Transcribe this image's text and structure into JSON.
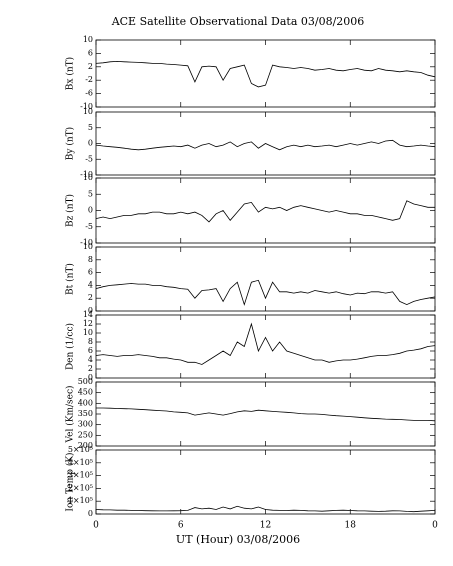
{
  "title": "ACE Satellite Observational Data   03/08/2006",
  "xlabel": "UT (Hour)  03/08/2006",
  "chart_data": [
    {
      "type": "line",
      "ylabel": "Bx (nT)",
      "color": "#000000",
      "xlim": [
        0,
        24
      ],
      "ylim": [
        -10,
        10
      ],
      "yticks": [
        -10,
        -6,
        -2,
        2,
        6,
        10
      ],
      "x": [
        0,
        0.5,
        1,
        1.5,
        2,
        2.5,
        3,
        3.5,
        4,
        4.5,
        5,
        5.5,
        6,
        6.5,
        7,
        7.5,
        8,
        8.5,
        9,
        9.5,
        10,
        10.5,
        11,
        11.5,
        12,
        12.5,
        13,
        13.5,
        14,
        14.5,
        15,
        15.5,
        16,
        16.5,
        17,
        17.5,
        18,
        18.5,
        19,
        19.5,
        20,
        20.5,
        21,
        21.5,
        22,
        22.5,
        23,
        23.5,
        24
      ],
      "values": [
        3,
        3.2,
        3.5,
        3.6,
        3.5,
        3.4,
        3.3,
        3.2,
        3,
        3,
        2.8,
        2.7,
        2.5,
        2.3,
        -2.5,
        2,
        2.2,
        2,
        -2,
        1.5,
        2,
        2.5,
        -3,
        -4,
        -3.5,
        2.5,
        2,
        1.8,
        1.5,
        1.8,
        1.5,
        1,
        1.2,
        1.5,
        1,
        0.8,
        1.2,
        1.5,
        1,
        0.8,
        1.5,
        1,
        0.8,
        0.5,
        0.8,
        0.5,
        0.3,
        -0.5,
        -1
      ]
    },
    {
      "type": "line",
      "ylabel": "By (nT)",
      "color": "#000000",
      "xlim": [
        0,
        24
      ],
      "ylim": [
        -10,
        10
      ],
      "yticks": [
        -10,
        -5,
        0,
        5,
        10
      ],
      "x": [
        0,
        0.5,
        1,
        1.5,
        2,
        2.5,
        3,
        3.5,
        4,
        4.5,
        5,
        5.5,
        6,
        6.5,
        7,
        7.5,
        8,
        8.5,
        9,
        9.5,
        10,
        10.5,
        11,
        11.5,
        12,
        12.5,
        13,
        13.5,
        14,
        14.5,
        15,
        15.5,
        16,
        16.5,
        17,
        17.5,
        18,
        18.5,
        19,
        19.5,
        20,
        20.5,
        21,
        21.5,
        22,
        22.5,
        23,
        23.5,
        24
      ],
      "values": [
        -0.5,
        -0.8,
        -1,
        -1.2,
        -1.5,
        -1.8,
        -2,
        -1.8,
        -1.5,
        -1.2,
        -1,
        -0.8,
        -1,
        -0.5,
        -1.5,
        -0.5,
        0,
        -1,
        -0.5,
        0.5,
        -1,
        0,
        0.5,
        -1.5,
        0,
        -1,
        -2,
        -1,
        -0.5,
        -1,
        -0.5,
        -1,
        -0.8,
        -0.5,
        -1,
        -0.5,
        0,
        -0.5,
        0,
        0.5,
        0,
        0.8,
        1,
        -0.5,
        -1,
        -0.8,
        -0.5,
        -0.8,
        -1
      ]
    },
    {
      "type": "line",
      "ylabel": "Bz (nT)",
      "color": "#000000",
      "xlim": [
        0,
        24
      ],
      "ylim": [
        -10,
        10
      ],
      "yticks": [
        -10,
        -5,
        0,
        5,
        10
      ],
      "x": [
        0,
        0.5,
        1,
        1.5,
        2,
        2.5,
        3,
        3.5,
        4,
        4.5,
        5,
        5.5,
        6,
        6.5,
        7,
        7.5,
        8,
        8.5,
        9,
        9.5,
        10,
        10.5,
        11,
        11.5,
        12,
        12.5,
        13,
        13.5,
        14,
        14.5,
        15,
        15.5,
        16,
        16.5,
        17,
        17.5,
        18,
        18.5,
        19,
        19.5,
        20,
        20.5,
        21,
        21.5,
        22,
        22.5,
        23,
        23.5,
        24
      ],
      "values": [
        -2.5,
        -2,
        -2.5,
        -2,
        -1.5,
        -1.5,
        -1,
        -1,
        -0.5,
        -0.5,
        -1,
        -1,
        -0.5,
        -1,
        -0.5,
        -1.5,
        -3.5,
        -1,
        0,
        -3,
        -0.5,
        2,
        2.5,
        -0.5,
        1,
        0.5,
        1,
        0,
        1,
        1.5,
        1,
        0.5,
        0,
        -0.5,
        0,
        -0.5,
        -1,
        -1,
        -1.5,
        -1.5,
        -2,
        -2.5,
        -3,
        -2.5,
        3,
        2,
        1.5,
        1,
        1
      ]
    },
    {
      "type": "line",
      "ylabel": "Bt (nT)",
      "color": "#000000",
      "xlim": [
        0,
        24
      ],
      "ylim": [
        0,
        10
      ],
      "yticks": [
        0,
        2,
        4,
        6,
        8,
        10
      ],
      "x": [
        0,
        0.5,
        1,
        1.5,
        2,
        2.5,
        3,
        3.5,
        4,
        4.5,
        5,
        5.5,
        6,
        6.5,
        7,
        7.5,
        8,
        8.5,
        9,
        9.5,
        10,
        10.5,
        11,
        11.5,
        12,
        12.5,
        13,
        13.5,
        14,
        14.5,
        15,
        15.5,
        16,
        16.5,
        17,
        17.5,
        18,
        18.5,
        19,
        19.5,
        20,
        20.5,
        21,
        21.5,
        22,
        22.5,
        23,
        23.5,
        24
      ],
      "values": [
        3.5,
        3.8,
        4,
        4.1,
        4.2,
        4.3,
        4.2,
        4.2,
        4,
        4,
        3.8,
        3.7,
        3.5,
        3.4,
        2,
        3.2,
        3.3,
        3.5,
        1.5,
        3.5,
        4.5,
        1,
        4.5,
        4.8,
        2,
        4.5,
        3,
        3,
        2.8,
        3,
        2.8,
        3.2,
        3,
        2.8,
        3,
        2.7,
        2.5,
        2.8,
        2.7,
        3,
        3,
        2.8,
        3,
        1.5,
        1,
        1.5,
        1.8,
        2,
        2.2
      ]
    },
    {
      "type": "line",
      "ylabel": "Den (1/cc)",
      "color": "#000000",
      "xlim": [
        0,
        24
      ],
      "ylim": [
        0,
        14
      ],
      "yticks": [
        0,
        2,
        4,
        6,
        8,
        10,
        12,
        14
      ],
      "x": [
        0,
        0.5,
        1,
        1.5,
        2,
        2.5,
        3,
        3.5,
        4,
        4.5,
        5,
        5.5,
        6,
        6.5,
        7,
        7.5,
        8,
        8.5,
        9,
        9.5,
        10,
        10.5,
        11,
        11.5,
        12,
        12.5,
        13,
        13.5,
        14,
        14.5,
        15,
        15.5,
        16,
        16.5,
        17,
        17.5,
        18,
        18.5,
        19,
        19.5,
        20,
        20.5,
        21,
        21.5,
        22,
        22.5,
        23,
        23.5,
        24
      ],
      "values": [
        5,
        5.2,
        5,
        4.8,
        5,
        5,
        5.2,
        5,
        4.8,
        4.5,
        4.5,
        4.2,
        4,
        3.5,
        3.5,
        3,
        4,
        5,
        6,
        5,
        8,
        7,
        12,
        6,
        9,
        6,
        8,
        6,
        5.5,
        5,
        4.5,
        4,
        4,
        3.5,
        3.8,
        4,
        4,
        4.2,
        4.5,
        4.8,
        5,
        5,
        5.2,
        5.5,
        6,
        6.2,
        6.5,
        7,
        7.2
      ]
    },
    {
      "type": "line",
      "ylabel": "Vel (Km/sec)",
      "color": "#000000",
      "xlim": [
        0,
        24
      ],
      "ylim": [
        200,
        500
      ],
      "yticks": [
        200,
        250,
        300,
        350,
        400,
        450,
        500
      ],
      "x": [
        0,
        0.5,
        1,
        1.5,
        2,
        2.5,
        3,
        3.5,
        4,
        4.5,
        5,
        5.5,
        6,
        6.5,
        7,
        7.5,
        8,
        8.5,
        9,
        9.5,
        10,
        10.5,
        11,
        11.5,
        12,
        12.5,
        13,
        13.5,
        14,
        14.5,
        15,
        15.5,
        16,
        16.5,
        17,
        17.5,
        18,
        18.5,
        19,
        19.5,
        20,
        20.5,
        21,
        21.5,
        22,
        22.5,
        23,
        23.5,
        24
      ],
      "values": [
        378,
        378,
        377,
        376,
        375,
        374,
        372,
        370,
        368,
        366,
        364,
        360,
        358,
        355,
        345,
        350,
        355,
        350,
        345,
        352,
        360,
        365,
        362,
        368,
        365,
        362,
        360,
        358,
        355,
        352,
        350,
        350,
        348,
        345,
        342,
        340,
        338,
        335,
        332,
        330,
        328,
        326,
        325,
        324,
        322,
        320,
        320,
        320,
        318
      ]
    },
    {
      "type": "line",
      "ylabel": "Ion Temp (K)",
      "color": "#000000",
      "xlim": [
        0,
        24
      ],
      "ylim": [
        0,
        500000
      ],
      "yticks": [
        0,
        {
          "value": 100000,
          "label": "1×10⁵"
        },
        {
          "value": 200000,
          "label": "2×10⁵"
        },
        {
          "value": 300000,
          "label": "3×10⁵"
        },
        {
          "value": 400000,
          "label": "4×10⁵"
        },
        {
          "value": 500000,
          "label": "5×10⁵"
        }
      ],
      "xticks": [
        0,
        6,
        12,
        18,
        {
          "value": 24,
          "label": "0"
        }
      ],
      "x": [
        0,
        0.5,
        1,
        1.5,
        2,
        2.5,
        3,
        3.5,
        4,
        4.5,
        5,
        5.5,
        6,
        6.5,
        7,
        7.5,
        8,
        8.5,
        9,
        9.5,
        10,
        10.5,
        11,
        11.5,
        12,
        12.5,
        13,
        13.5,
        14,
        14.5,
        15,
        15.5,
        16,
        16.5,
        17,
        17.5,
        18,
        18.5,
        19,
        19.5,
        20,
        20.5,
        21,
        21.5,
        22,
        22.5,
        23,
        23.5,
        24
      ],
      "values": [
        35000,
        33000,
        32000,
        30000,
        30000,
        28000,
        27000,
        26000,
        25000,
        24000,
        24000,
        25000,
        26000,
        28000,
        50000,
        40000,
        45000,
        35000,
        55000,
        40000,
        60000,
        45000,
        40000,
        55000,
        35000,
        30000,
        28000,
        27000,
        30000,
        28000,
        25000,
        24000,
        22000,
        25000,
        28000,
        30000,
        27000,
        25000,
        24000,
        22000,
        20000,
        22000,
        25000,
        24000,
        20000,
        18000,
        22000,
        25000,
        28000
      ]
    }
  ]
}
